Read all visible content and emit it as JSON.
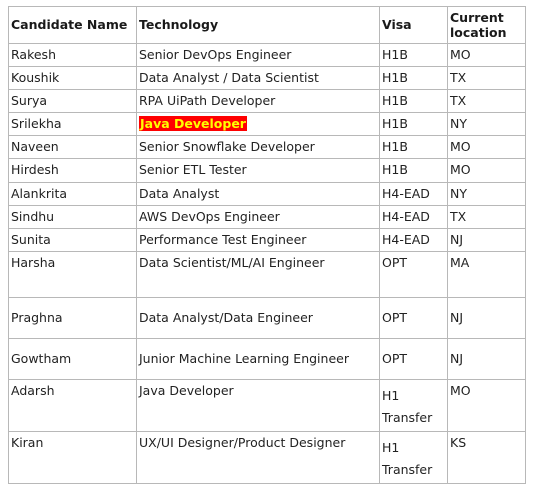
{
  "table": {
    "headers": {
      "name": "Candidate Name",
      "technology": "Technology",
      "visa": "Visa",
      "location": "Current location"
    },
    "rows": [
      {
        "name": "Rakesh",
        "technology": "Senior DevOps Engineer",
        "visa": "H1B",
        "location": "MO"
      },
      {
        "name": "Koushik",
        "technology": "Data Analyst / Data Scientist",
        "visa": "H1B",
        "location": "TX"
      },
      {
        "name": "Surya",
        "technology": "RPA UiPath Developer",
        "visa": "H1B",
        "location": "TX"
      },
      {
        "name": "Srilekha",
        "technology": "Java Developer",
        "visa": "H1B",
        "location": "NY"
      },
      {
        "name": "Naveen",
        "technology": "Senior Snowflake Developer",
        "visa": "H1B",
        "location": "MO"
      },
      {
        "name": "Hirdesh",
        "technology": "Senior ETL Tester",
        "visa": "H1B",
        "location": "MO"
      },
      {
        "name": "Alankrita",
        "technology": "Data Analyst",
        "visa": "H4-EAD",
        "location": "NY"
      },
      {
        "name": "Sindhu",
        "technology": "AWS DevOps Engineer",
        "visa": "H4-EAD",
        "location": "TX"
      },
      {
        "name": "Sunita",
        "technology": "Performance Test Engineer",
        "visa": "H4-EAD",
        "location": "NJ"
      },
      {
        "name": "Harsha",
        "technology": "Data Scientist/ML/AI Engineer",
        "visa": "OPT",
        "location": "MA"
      },
      {
        "name": "Praghna",
        "technology": "Data Analyst/Data Engineer",
        "visa": "OPT",
        "location": "NJ"
      },
      {
        "name": "Gowtham",
        "technology": "Junior Machine Learning Engineer",
        "visa": "OPT",
        "location": "NJ"
      },
      {
        "name": "Adarsh",
        "technology": "Java Developer",
        "visa": "H1 Transfer",
        "location": "MO"
      },
      {
        "name": "Kiran",
        "technology": "UX/UI Designer/Product Designer",
        "visa": "H1 Transfer",
        "location": "KS"
      }
    ],
    "highlight_colors": {
      "background": "#ff0000",
      "text": "#ffff00"
    }
  }
}
